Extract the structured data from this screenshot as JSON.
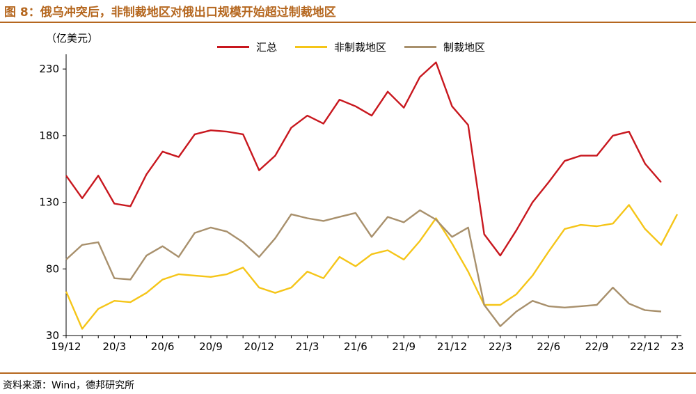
{
  "header": {
    "title": "图 8：俄乌冲突后，非制裁地区对俄出口规模开始超过制裁地区"
  },
  "footer": {
    "source": "资料来源：Wind，德邦研究所"
  },
  "chart_data": {
    "type": "line",
    "title": "",
    "unit_label": "（亿美元）",
    "xlabel": "",
    "ylabel": "",
    "ylim": [
      30,
      240
    ],
    "yticks": [
      30,
      80,
      130,
      180,
      230
    ],
    "xlim": [
      0,
      38
    ],
    "xticks": [
      {
        "i": 0,
        "label": "19/12"
      },
      {
        "i": 3,
        "label": "20/3"
      },
      {
        "i": 6,
        "label": "20/6"
      },
      {
        "i": 9,
        "label": "20/9"
      },
      {
        "i": 12,
        "label": "20/12"
      },
      {
        "i": 15,
        "label": "21/3"
      },
      {
        "i": 18,
        "label": "21/6"
      },
      {
        "i": 21,
        "label": "21/9"
      },
      {
        "i": 24,
        "label": "21/12"
      },
      {
        "i": 27,
        "label": "22/3"
      },
      {
        "i": 30,
        "label": "22/6"
      },
      {
        "i": 33,
        "label": "22/9"
      },
      {
        "i": 36,
        "label": "22/12"
      },
      {
        "i": 38,
        "label": "23"
      }
    ],
    "legend_position": "top-center",
    "grid": false,
    "series": [
      {
        "name": "汇总",
        "color": "#c8171e",
        "values": [
          150,
          133,
          150,
          129,
          127,
          151,
          168,
          164,
          181,
          184,
          183,
          181,
          154,
          165,
          186,
          195,
          189,
          207,
          202,
          195,
          213,
          201,
          224,
          235,
          202,
          188,
          106,
          90,
          109,
          130,
          145,
          161,
          165,
          165,
          180,
          183,
          159,
          145
        ]
      },
      {
        "name": "非制裁地区",
        "color": "#f5c518",
        "values": [
          63,
          35,
          50,
          56,
          55,
          62,
          72,
          76,
          75,
          74,
          76,
          81,
          66,
          62,
          66,
          78,
          73,
          89,
          82,
          91,
          94,
          87,
          101,
          118,
          99,
          78,
          53,
          53,
          61,
          75,
          93,
          110,
          113,
          112,
          114,
          128,
          110,
          98,
          121
        ]
      },
      {
        "name": "制裁地区",
        "color": "#a8906c",
        "values": [
          87,
          98,
          100,
          73,
          72,
          90,
          97,
          89,
          107,
          111,
          108,
          100,
          89,
          103,
          121,
          118,
          116,
          119,
          122,
          104,
          119,
          115,
          124,
          117,
          104,
          111,
          53,
          37,
          48,
          56,
          52,
          51,
          52,
          53,
          66,
          54,
          49,
          48
        ]
      }
    ]
  }
}
